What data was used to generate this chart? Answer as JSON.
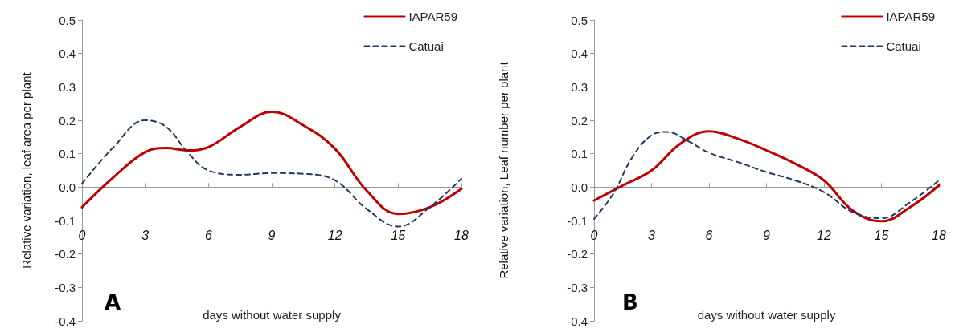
{
  "chart_data": [
    {
      "type": "line",
      "xlabel": "days without water supply",
      "ylabel": "Relative variation, leaf area per plant",
      "annotations": [
        "A"
      ],
      "xlim": [
        0,
        18
      ],
      "xticks": [
        0,
        3,
        6,
        9,
        12,
        15,
        18
      ],
      "ylim": [
        -0.4,
        0.5
      ],
      "yticks": [
        -0.4,
        -0.3,
        -0.2,
        -0.1,
        {
          "value": 0,
          "label": "0.0"
        },
        0.1,
        0.2,
        0.3,
        0.4,
        0.5
      ],
      "legend": "top right",
      "series": [
        {
          "name": "IAPAR59",
          "color": "#c00000",
          "line_style": "solid",
          "x": [
            0,
            1.5,
            3,
            4,
            5,
            6,
            7.5,
            9,
            10.5,
            12,
            13.5,
            15,
            16.5,
            18
          ],
          "values": [
            -0.06,
            0.03,
            0.105,
            0.117,
            0.11,
            0.12,
            0.18,
            0.225,
            0.185,
            0.115,
            -0.01,
            -0.08,
            -0.06,
            -0.005
          ]
        },
        {
          "name": "Catuai",
          "color": "#1f3864",
          "line_style": "dashed",
          "x": [
            0,
            1.5,
            3,
            4,
            5,
            6,
            7.5,
            9,
            10.5,
            12,
            13.5,
            15,
            16.5,
            18
          ],
          "values": [
            0.01,
            0.12,
            0.2,
            0.18,
            0.105,
            0.05,
            0.037,
            0.042,
            0.04,
            0.02,
            -0.065,
            -0.118,
            -0.06,
            0.025
          ]
        }
      ]
    },
    {
      "type": "line",
      "xlabel": "days without water supply",
      "ylabel": "Relative variation, Leaf number per plant",
      "annotations": [
        "B"
      ],
      "xlim": [
        0,
        18
      ],
      "xticks": [
        0,
        3,
        6,
        9,
        12,
        15,
        18
      ],
      "ylim": [
        -0.4,
        0.5
      ],
      "yticks": [
        -0.4,
        -0.3,
        -0.2,
        -0.1,
        {
          "value": 0,
          "label": "0.0"
        },
        0.1,
        0.2,
        0.3,
        0.4,
        0.5
      ],
      "legend": "top right",
      "series": [
        {
          "name": "IAPAR59",
          "color": "#c00000",
          "line_style": "solid",
          "x": [
            0,
            1.5,
            3,
            4.5,
            6,
            7.5,
            9,
            10.5,
            12,
            13.5,
            15,
            16.5,
            18
          ],
          "values": [
            -0.04,
            0.005,
            0.05,
            0.13,
            0.167,
            0.145,
            0.11,
            0.07,
            0.02,
            -0.07,
            -0.102,
            -0.06,
            0.005
          ]
        },
        {
          "name": "Catuai",
          "color": "#1f3864",
          "line_style": "dashed",
          "x": [
            0,
            1,
            2,
            3,
            3.8,
            5,
            6,
            7.5,
            9,
            10.5,
            12,
            13.5,
            15,
            16.5,
            18
          ],
          "values": [
            -0.095,
            -0.02,
            0.09,
            0.155,
            0.165,
            0.135,
            0.103,
            0.075,
            0.045,
            0.02,
            -0.015,
            -0.075,
            -0.093,
            -0.045,
            0.02
          ]
        }
      ]
    }
  ]
}
